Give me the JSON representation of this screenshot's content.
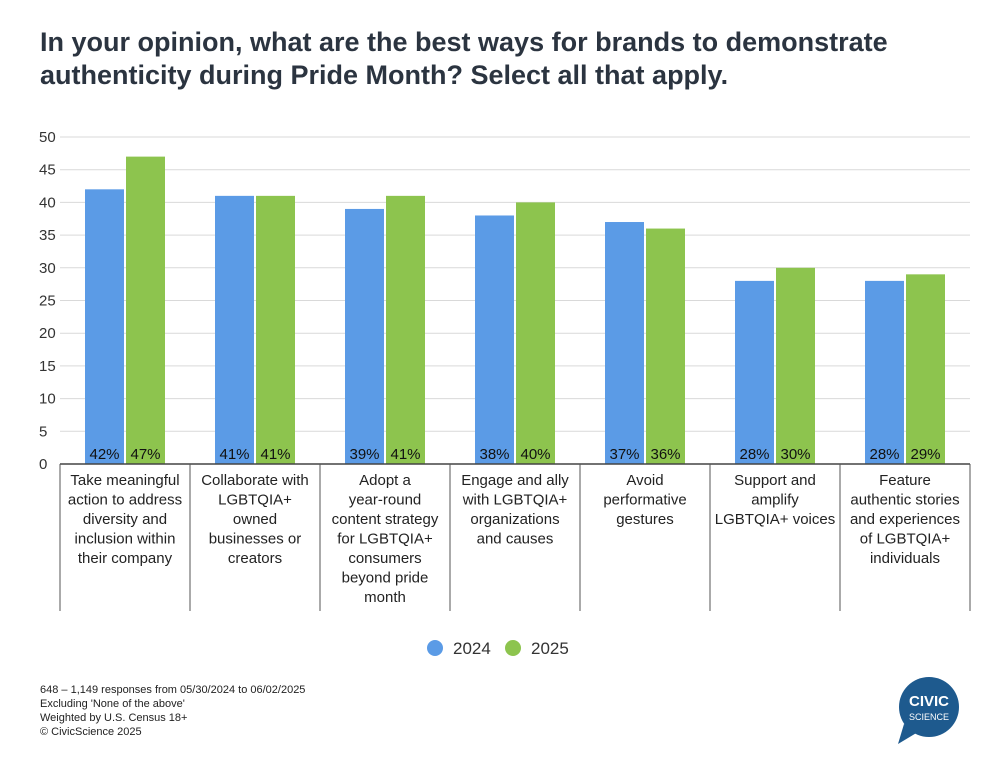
{
  "chart_data": {
    "type": "bar",
    "title": "In your opinion, what are the best ways for brands to demonstrate authenticity during Pride Month? Select all that apply.",
    "categories": [
      [
        "Take meaningful",
        "action to address",
        "diversity and",
        "inclusion within",
        "their company"
      ],
      [
        "Collaborate with",
        "LGBTQIA+",
        "owned",
        "businesses or",
        "creators"
      ],
      [
        "Adopt a",
        "year-round",
        "content strategy",
        "for LGBTQIA+",
        "consumers",
        "beyond pride",
        "month"
      ],
      [
        "Engage and ally",
        "with LGBTQIA+",
        "organizations",
        "and causes"
      ],
      [
        "Avoid",
        "performative",
        "gestures"
      ],
      [
        "Support and",
        "amplify",
        "LGBTQIA+ voices"
      ],
      [
        "Feature",
        "authentic stories",
        "and experiences",
        "of LGBTQIA+",
        "individuals"
      ]
    ],
    "series": [
      {
        "name": "2024",
        "color": "#5b9be6",
        "values": [
          42,
          41,
          39,
          38,
          37,
          28,
          28
        ],
        "labels": [
          "42%",
          "41%",
          "39%",
          "38%",
          "37%",
          "28%",
          "28%"
        ]
      },
      {
        "name": "2025",
        "color": "#8dc44e",
        "values": [
          47,
          41,
          41,
          40,
          36,
          30,
          29
        ],
        "labels": [
          "47%",
          "41%",
          "41%",
          "40%",
          "36%",
          "30%",
          "29%"
        ]
      }
    ],
    "ylim": [
      0,
      50
    ],
    "yticks": [
      "0",
      "5",
      "10",
      "15",
      "20",
      "25",
      "30",
      "35",
      "40",
      "45",
      "50"
    ],
    "xlabel": "",
    "ylabel": "",
    "grid": true,
    "legend_position": "bottom-center"
  },
  "footnotes": [
    "648 – 1,149 responses from 05/30/2024 to 06/02/2025",
    "Excluding 'None of the above'",
    "Weighted by U.S. Census 18+",
    "© CivicScience 2025"
  ],
  "logo": {
    "line1": "CIVIC",
    "line2": "SCIENCE",
    "color": "#1e5a8e"
  }
}
